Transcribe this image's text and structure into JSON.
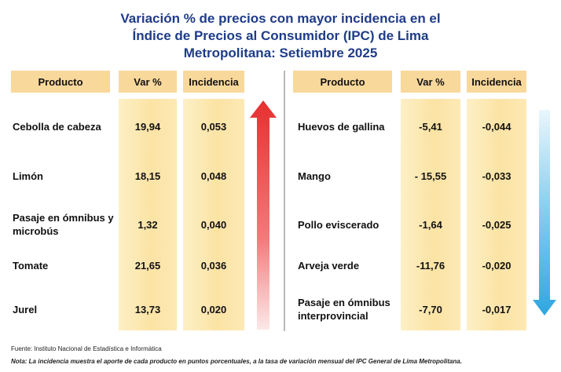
{
  "title_lines": [
    "Variación % de precios con mayor incidencia en el",
    "Índice de Precios al Consumidor (IPC) de Lima",
    "Metropolitana: Setiembre 2025"
  ],
  "headers": {
    "producto": "Producto",
    "var": "Var %",
    "incidencia": "Incidencia"
  },
  "colors": {
    "title": "#1f3c88",
    "header_fill": "#f9d89c",
    "band_fill": "#fbe3a4",
    "up_arrow": "#e53030",
    "down_arrow": "#2fa6e0"
  },
  "chart_data": {
    "type": "table",
    "tables": [
      {
        "direction": "up",
        "rows": [
          {
            "producto": [
              "Cebolla de cabeza"
            ],
            "var": "19,94",
            "incidencia": "0,053"
          },
          {
            "producto": [
              "Limón"
            ],
            "var": "18,15",
            "incidencia": "0,048"
          },
          {
            "producto": [
              "Pasaje en ómnibus y",
              "microbús"
            ],
            "var": "1,32",
            "incidencia": "0,040"
          },
          {
            "producto": [
              "Tomate"
            ],
            "var": "21,65",
            "incidencia": "0,036"
          },
          {
            "producto": [
              "Jurel"
            ],
            "var": "13,73",
            "incidencia": "0,020"
          }
        ]
      },
      {
        "direction": "down",
        "rows": [
          {
            "producto": [
              "Huevos de gallina"
            ],
            "var": "-5,41",
            "incidencia": "-0,044"
          },
          {
            "producto": [
              "Mango"
            ],
            "var": "- 15,55",
            "incidencia": "-0,033"
          },
          {
            "producto": [
              "Pollo eviscerado"
            ],
            "var": "-1,64",
            "incidencia": "-0,025"
          },
          {
            "producto": [
              "Arveja verde"
            ],
            "var": "-11,76",
            "incidencia": "-0,020"
          },
          {
            "producto": [
              "Pasaje en ómnibus",
              "interprovincial"
            ],
            "var": "-7,70",
            "incidencia": "-0,017"
          }
        ]
      }
    ]
  },
  "footer": {
    "source": "Fuente: Instituto  Nacional de Estadística  e Informática",
    "note": "Nota: La incidencia muestra  el aporte de cada producto en puntos porcentuales,  a la tasa de variación mensual  del IPC General de Lima Metropolitana."
  }
}
